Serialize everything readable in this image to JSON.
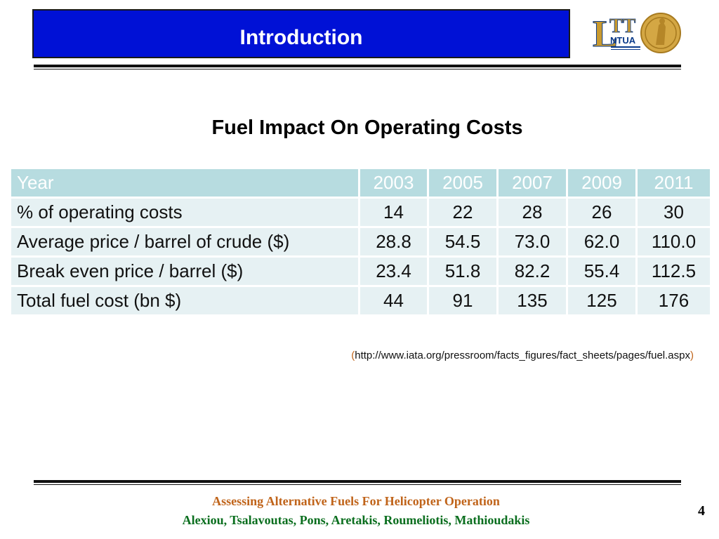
{
  "header": {
    "title": "Introduction"
  },
  "logo": {
    "text": "LTT",
    "subtext": "NTUA"
  },
  "heading": "Fuel Impact On Operating Costs",
  "table": {
    "header": [
      "Year",
      "2003",
      "2005",
      "2007",
      "2009",
      "2011"
    ],
    "rows": [
      [
        "% of operating costs",
        "14",
        "22",
        "28",
        "26",
        "30"
      ],
      [
        "Average price / barrel of crude ($)",
        "28.8",
        "54.5",
        "73.0",
        "62.0",
        "110.0"
      ],
      [
        "Break even price / barrel ($)",
        "23.4",
        "51.8",
        "82.2",
        "55.4",
        "112.5"
      ],
      [
        "Total fuel cost (bn $)",
        "44",
        "91",
        "135",
        "125",
        "176"
      ]
    ]
  },
  "source": {
    "open": "(",
    "url": "http://www.iata.org/pressroom/facts_figures/fact_sheets/pages/fuel.aspx",
    "close": ")"
  },
  "footer": {
    "title": "Assessing Alternative Fuels For Helicopter Operation",
    "authors": "Alexiou, Tsalavoutas, Pons, Aretakis, Roumeliotis, Mathioudakis",
    "page": "4"
  },
  "colors": {
    "title_bg": "#0011d6",
    "table_header_bg": "#b7dce0",
    "table_row_bg": "#e6f1f3",
    "footer_title": "#c0641a",
    "footer_authors": "#0a6e1e"
  }
}
